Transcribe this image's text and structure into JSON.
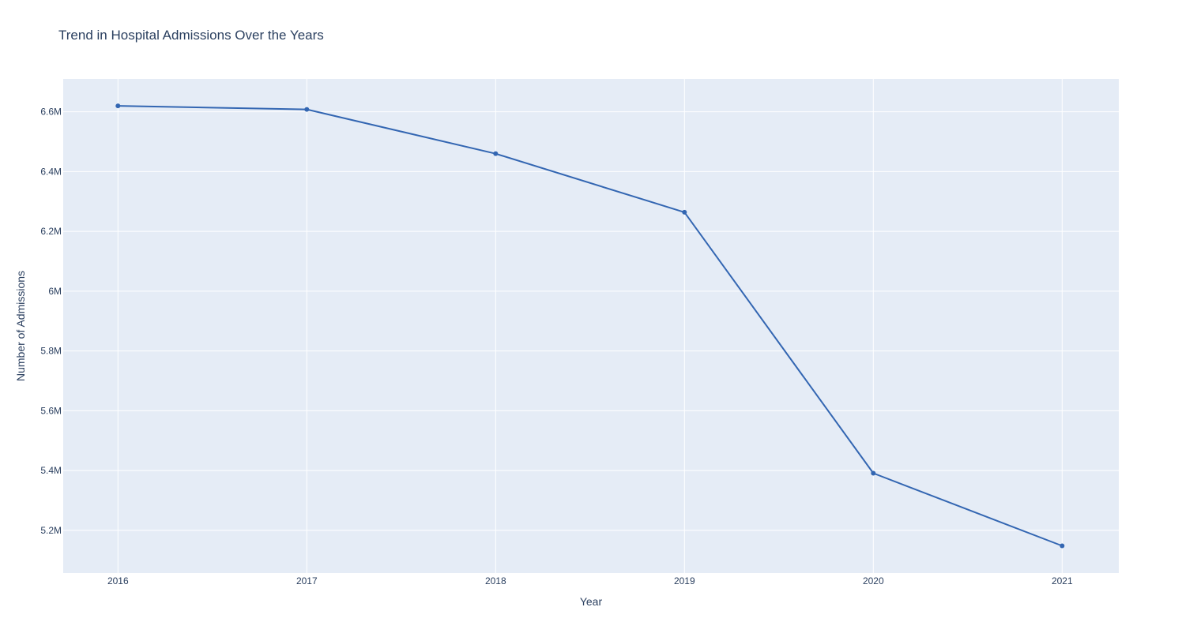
{
  "chart_data": {
    "type": "line",
    "title": "Trend in Hospital Admissions Over the Years",
    "xlabel": "Year",
    "ylabel": "Number of Admissions",
    "x": [
      2016,
      2017,
      2018,
      2019,
      2020,
      2021
    ],
    "x_tick_labels": [
      "2016",
      "2017",
      "2018",
      "2019",
      "2020",
      "2021"
    ],
    "y_ticks": [
      5200000,
      5400000,
      5600000,
      5800000,
      6000000,
      6200000,
      6400000,
      6600000
    ],
    "y_tick_labels": [
      "5.2M",
      "5.4M",
      "5.6M",
      "5.8M",
      "6M",
      "6.2M",
      "6.4M",
      "6.6M"
    ],
    "xlim": [
      2015.71,
      2021.3
    ],
    "ylim": [
      5057000,
      6710000
    ],
    "series": [
      {
        "values": [
          6620000,
          6608000,
          6460000,
          6264000,
          5391000,
          5148000
        ],
        "color": "#3366b2",
        "mode": "lines+markers"
      }
    ],
    "grid": true,
    "legend": "none",
    "plot_background": "#e5ecf6",
    "grid_color": "#ffffff",
    "text_color": "#2a3f5f"
  }
}
